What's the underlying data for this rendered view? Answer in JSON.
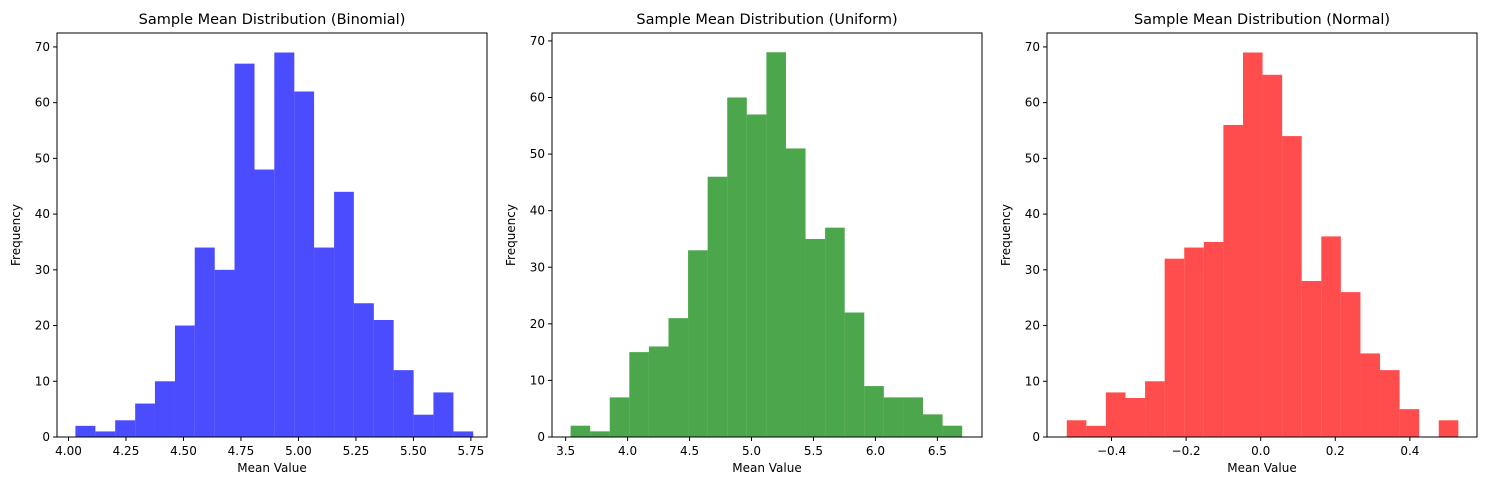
{
  "chart_data": [
    {
      "type": "bar",
      "title": "Sample Mean Distribution (Binomial)",
      "xlabel": "Mean Value",
      "ylabel": "Frequency",
      "color": "#0000ff",
      "opacity": 0.7,
      "grid": false,
      "xlim": [
        3.95,
        5.82
      ],
      "ylim": [
        0,
        72.5
      ],
      "xticks": [
        "4.00",
        "4.25",
        "4.50",
        "4.75",
        "5.00",
        "5.25",
        "5.50",
        "5.75"
      ],
      "xtick_values": [
        4.0,
        4.25,
        4.5,
        4.75,
        5.0,
        5.25,
        5.5,
        5.75
      ],
      "yticks": [
        "0",
        "10",
        "20",
        "30",
        "40",
        "50",
        "60",
        "70"
      ],
      "ytick_values": [
        0,
        10,
        20,
        30,
        40,
        50,
        60,
        70
      ],
      "bin_edges": [
        4.03,
        4.117,
        4.203,
        4.29,
        4.376,
        4.463,
        4.549,
        4.636,
        4.722,
        4.809,
        4.895,
        4.982,
        5.068,
        5.155,
        5.241,
        5.328,
        5.414,
        5.501,
        5.587,
        5.674,
        5.76
      ],
      "counts": [
        2,
        1,
        3,
        6,
        10,
        20,
        34,
        30,
        67,
        48,
        69,
        62,
        34,
        44,
        24,
        21,
        12,
        4,
        8,
        1
      ]
    },
    {
      "type": "bar",
      "title": "Sample Mean Distribution (Uniform)",
      "xlabel": "Mean Value",
      "ylabel": "Frequency",
      "color": "#008000",
      "opacity": 0.7,
      "grid": false,
      "xlim": [
        3.39,
        6.86
      ],
      "ylim": [
        0,
        71.4
      ],
      "xticks": [
        "3.5",
        "4.0",
        "4.5",
        "5.0",
        "5.5",
        "6.0",
        "6.5"
      ],
      "xtick_values": [
        3.5,
        4.0,
        4.5,
        5.0,
        5.5,
        6.0,
        6.5
      ],
      "yticks": [
        "0",
        "10",
        "20",
        "30",
        "40",
        "50",
        "60",
        "70"
      ],
      "ytick_values": [
        0,
        10,
        20,
        30,
        40,
        50,
        60,
        70
      ],
      "bin_edges": [
        3.54,
        3.698,
        3.856,
        4.014,
        4.172,
        4.33,
        4.488,
        4.646,
        4.804,
        4.962,
        5.12,
        5.278,
        5.436,
        5.594,
        5.752,
        5.91,
        6.068,
        6.226,
        6.384,
        6.542,
        6.7
      ],
      "counts": [
        2,
        1,
        7,
        15,
        16,
        21,
        33,
        46,
        60,
        57,
        68,
        51,
        35,
        37,
        22,
        9,
        7,
        7,
        4,
        2
      ]
    },
    {
      "type": "bar",
      "title": "Sample Mean Distribution (Normal)",
      "xlabel": "Mean Value",
      "ylabel": "Frequency",
      "color": "#ff0000",
      "opacity": 0.7,
      "grid": false,
      "xlim": [
        -0.573,
        0.58
      ],
      "ylim": [
        0,
        72.5
      ],
      "xticks": [
        "−0.4",
        "−0.2",
        "0.0",
        "0.2",
        "0.4"
      ],
      "xtick_values": [
        -0.4,
        -0.2,
        0.0,
        0.2,
        0.4
      ],
      "yticks": [
        "0",
        "10",
        "20",
        "30",
        "40",
        "50",
        "60",
        "70"
      ],
      "ytick_values": [
        0,
        10,
        20,
        30,
        40,
        50,
        60,
        70
      ],
      "bin_edges": [
        -0.52,
        -0.4675,
        -0.415,
        -0.3625,
        -0.31,
        -0.2575,
        -0.205,
        -0.1525,
        -0.1,
        -0.0475,
        0.005,
        0.0575,
        0.11,
        0.1625,
        0.215,
        0.2675,
        0.32,
        0.3725,
        0.425,
        0.4775,
        0.53
      ],
      "counts": [
        3,
        2,
        8,
        7,
        10,
        32,
        34,
        35,
        56,
        69,
        65,
        54,
        28,
        36,
        26,
        15,
        12,
        5,
        0,
        3
      ]
    }
  ]
}
